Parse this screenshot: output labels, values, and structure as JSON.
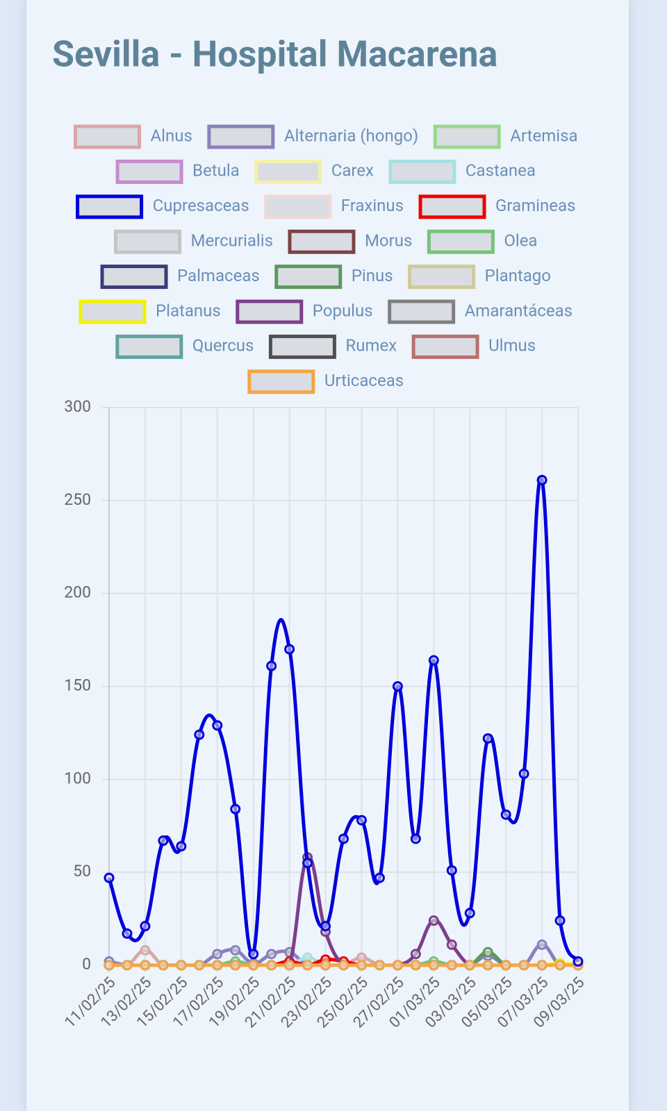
{
  "chart_data": {
    "type": "line",
    "title": "Sevilla - Hospital Macarena",
    "categories": [
      "11/02/25",
      null,
      "13/02/25",
      null,
      "15/02/25",
      null,
      "17/02/25",
      null,
      "19/02/25",
      null,
      "21/02/25",
      null,
      "23/02/25",
      null,
      "25/02/25",
      null,
      "27/02/25",
      null,
      "01/03/25",
      null,
      "03/03/25",
      null,
      "05/03/25",
      null,
      "07/03/25",
      null,
      "09/03/25"
    ],
    "ylim": [
      0,
      300
    ],
    "yticks": [
      0,
      50,
      100,
      150,
      200,
      250,
      300
    ],
    "grid": true,
    "series": [
      {
        "name": "Alnus",
        "color": "#dba6a6",
        "values": [
          0,
          0,
          8,
          0,
          0,
          0,
          0,
          0,
          0,
          0,
          0,
          0,
          0,
          0,
          4,
          0,
          0,
          0,
          0,
          0,
          0,
          0,
          0,
          0,
          0,
          0,
          0
        ]
      },
      {
        "name": "Alternaria (hongo)",
        "color": "#8a80bb",
        "values": [
          2,
          0,
          0,
          0,
          0,
          0,
          6,
          8,
          1,
          6,
          7,
          0,
          0,
          0,
          0,
          0,
          0,
          0,
          0,
          0,
          0,
          5,
          0,
          0,
          11,
          0,
          0
        ]
      },
      {
        "name": "Artemisa",
        "color": "#98d98e",
        "values": [
          0,
          0,
          0,
          0,
          0,
          0,
          0,
          0,
          0,
          0,
          0,
          0,
          0,
          0,
          0,
          0,
          0,
          0,
          0,
          0,
          0,
          0,
          0,
          0,
          0,
          0,
          0
        ]
      },
      {
        "name": "Betula",
        "color": "#c68ccc",
        "values": [
          0,
          0,
          0,
          0,
          0,
          0,
          0,
          0,
          0,
          0,
          0,
          0,
          0,
          0,
          0,
          0,
          0,
          0,
          0,
          0,
          0,
          0,
          0,
          0,
          0,
          0,
          0
        ]
      },
      {
        "name": "Carex",
        "color": "#f4f0aa",
        "values": [
          0,
          0,
          0,
          0,
          0,
          0,
          0,
          0,
          0,
          0,
          0,
          0,
          0,
          0,
          0,
          0,
          0,
          0,
          0,
          0,
          0,
          0,
          0,
          0,
          0,
          0,
          0
        ]
      },
      {
        "name": "Castanea",
        "color": "#a6e0e2",
        "values": [
          0,
          0,
          0,
          0,
          0,
          0,
          0,
          0,
          0,
          0,
          0,
          4,
          0,
          0,
          0,
          0,
          0,
          0,
          0,
          0,
          0,
          0,
          0,
          0,
          0,
          0,
          0
        ]
      },
      {
        "name": "Cupresaceas",
        "color": "#0000dd",
        "values": [
          47,
          17,
          21,
          67,
          64,
          124,
          129,
          84,
          6,
          161,
          170,
          55,
          21,
          68,
          78,
          47,
          150,
          68,
          164,
          51,
          28,
          122,
          81,
          103,
          261,
          24,
          2
        ]
      },
      {
        "name": "Fraxinus",
        "color": "#f0d8d8",
        "values": [
          0,
          0,
          0,
          0,
          0,
          0,
          0,
          0,
          0,
          0,
          0,
          0,
          0,
          0,
          0,
          0,
          0,
          0,
          0,
          0,
          0,
          0,
          0,
          0,
          0,
          0,
          0
        ]
      },
      {
        "name": "Gramineas",
        "color": "#ee0000",
        "values": [
          0,
          0,
          0,
          0,
          0,
          0,
          0,
          0,
          0,
          0,
          2,
          0,
          3,
          2,
          0,
          0,
          0,
          0,
          0,
          0,
          0,
          0,
          0,
          0,
          0,
          0,
          0
        ]
      },
      {
        "name": "Mercurialis",
        "color": "#c4c4c4",
        "values": [
          0,
          0,
          0,
          0,
          0,
          0,
          0,
          0,
          0,
          0,
          0,
          0,
          0,
          0,
          0,
          0,
          0,
          0,
          0,
          0,
          0,
          0,
          0,
          0,
          0,
          0,
          0
        ]
      },
      {
        "name": "Morus",
        "color": "#7a4444",
        "values": [
          0,
          0,
          0,
          0,
          0,
          0,
          0,
          0,
          0,
          0,
          0,
          0,
          0,
          0,
          0,
          0,
          0,
          0,
          0,
          0,
          0,
          0,
          0,
          0,
          0,
          0,
          0
        ]
      },
      {
        "name": "Olea",
        "color": "#78c278",
        "values": [
          0,
          0,
          0,
          0,
          0,
          0,
          0,
          2,
          0,
          0,
          0,
          0,
          0,
          0,
          0,
          0,
          0,
          0,
          2,
          0,
          0,
          0,
          0,
          0,
          0,
          0,
          0
        ]
      },
      {
        "name": "Palmaceas",
        "color": "#3b3b7a",
        "values": [
          0,
          0,
          0,
          0,
          0,
          0,
          0,
          0,
          0,
          0,
          0,
          0,
          0,
          0,
          0,
          0,
          0,
          0,
          0,
          0,
          0,
          0,
          0,
          0,
          0,
          0,
          0
        ]
      },
      {
        "name": "Pinus",
        "color": "#5b9a5b",
        "values": [
          0,
          0,
          0,
          0,
          0,
          0,
          0,
          0,
          0,
          0,
          0,
          0,
          0,
          0,
          0,
          0,
          0,
          0,
          0,
          0,
          0,
          7,
          0,
          0,
          0,
          0,
          0
        ]
      },
      {
        "name": "Plantago",
        "color": "#cfcb98",
        "values": [
          0,
          0,
          0,
          0,
          0,
          0,
          0,
          0,
          0,
          0,
          0,
          0,
          0,
          0,
          0,
          0,
          0,
          0,
          0,
          0,
          0,
          0,
          0,
          0,
          0,
          0,
          0
        ]
      },
      {
        "name": "Platanus",
        "color": "#f2f200",
        "values": [
          0,
          0,
          0,
          0,
          0,
          0,
          0,
          0,
          0,
          0,
          0,
          0,
          0,
          0,
          0,
          0,
          0,
          0,
          0,
          0,
          0,
          0,
          0,
          0,
          0,
          1,
          0
        ]
      },
      {
        "name": "Populus",
        "color": "#7e3f8a",
        "values": [
          0,
          0,
          0,
          0,
          0,
          0,
          0,
          0,
          0,
          0,
          0,
          58,
          18,
          0,
          0,
          0,
          0,
          6,
          24,
          11,
          0,
          0,
          0,
          0,
          0,
          0,
          0
        ]
      },
      {
        "name": "Amarantáceas",
        "color": "#808080",
        "values": [
          0,
          0,
          0,
          0,
          0,
          0,
          0,
          0,
          0,
          0,
          0,
          0,
          0,
          0,
          0,
          0,
          0,
          0,
          0,
          0,
          0,
          0,
          0,
          0,
          0,
          0,
          0
        ]
      },
      {
        "name": "Quercus",
        "color": "#5fa3a3",
        "values": [
          0,
          0,
          0,
          0,
          0,
          0,
          0,
          0,
          0,
          0,
          0,
          0,
          0,
          0,
          0,
          0,
          0,
          0,
          0,
          0,
          0,
          0,
          0,
          0,
          0,
          0,
          0
        ]
      },
      {
        "name": "Rumex",
        "color": "#505050",
        "values": [
          0,
          0,
          0,
          0,
          0,
          0,
          0,
          0,
          0,
          0,
          0,
          0,
          0,
          0,
          0,
          0,
          0,
          0,
          0,
          0,
          0,
          0,
          0,
          0,
          0,
          0,
          0
        ]
      },
      {
        "name": "Ulmus",
        "color": "#b87070",
        "values": [
          0,
          0,
          0,
          0,
          0,
          0,
          0,
          0,
          0,
          0,
          0,
          0,
          0,
          0,
          0,
          0,
          0,
          0,
          0,
          0,
          0,
          0,
          0,
          0,
          0,
          0,
          0
        ]
      },
      {
        "name": "Urticaceas",
        "color": "#f5a545",
        "values": [
          0,
          0,
          0,
          0,
          0,
          0,
          0,
          0,
          0,
          0,
          0,
          0,
          0,
          0,
          0,
          0,
          0,
          0,
          0,
          0,
          0,
          0,
          0,
          0,
          0,
          0,
          0
        ]
      }
    ]
  }
}
